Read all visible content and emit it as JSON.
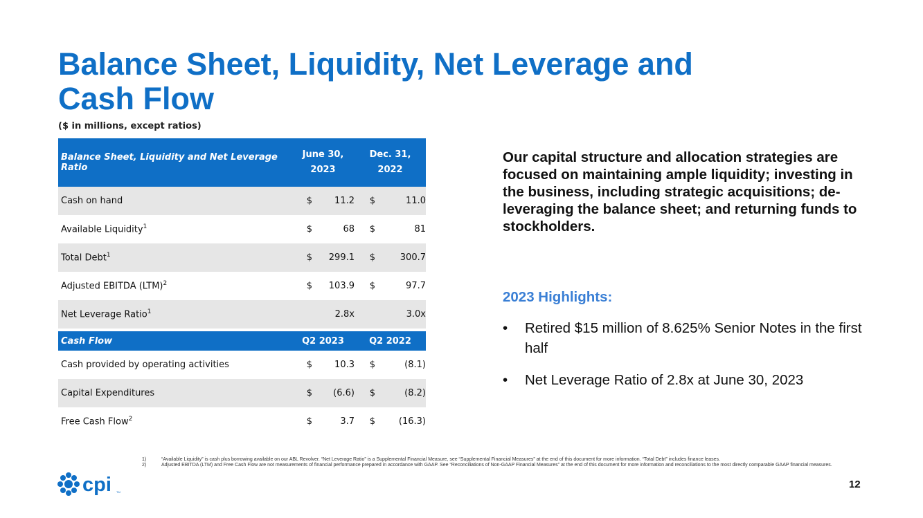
{
  "title": "Balance Sheet, Liquidity, Net Leverage and Cash Flow",
  "subtitle": "($ in millions, except ratios)",
  "table": {
    "header": {
      "label": "Balance Sheet, Liquidity and Net Leverage Ratio",
      "col1": "June 30,\n2023",
      "col2": "Dec. 31,\n2022"
    },
    "rows": [
      {
        "label": "Cash on hand",
        "sup": "",
        "cur1": "$",
        "v1": "11.2",
        "cur2": "$",
        "v2": "11.0"
      },
      {
        "label": "Available Liquidity",
        "sup": "1",
        "cur1": "$",
        "v1": "68",
        "cur2": "$",
        "v2": "81"
      },
      {
        "label": "Total Debt",
        "sup": "1",
        "cur1": "$",
        "v1": "299.1",
        "cur2": "$",
        "v2": "300.7"
      },
      {
        "label": "Adjusted EBITDA (LTM)",
        "sup": "2",
        "cur1": "$",
        "v1": "103.9",
        "cur2": "$",
        "v2": "97.7"
      },
      {
        "label": "Net Leverage Ratio",
        "sup": "1",
        "cur1": "",
        "v1": "2.8x",
        "cur2": "",
        "v2": "3.0x"
      }
    ],
    "cash_flow_header": {
      "label": "Cash Flow",
      "col1": "Q2 2023",
      "col2": "Q2 2022"
    },
    "cash_flow_rows": [
      {
        "label": "Cash provided by operating activities",
        "sup": "",
        "cur1": "$",
        "v1": "10.3",
        "cur2": "$",
        "v2": "(8.1)"
      },
      {
        "label": "Capital Expenditures",
        "sup": "",
        "cur1": "$",
        "v1": "(6.6)",
        "cur2": "$",
        "v2": "(8.2)"
      },
      {
        "label": "Free Cash Flow",
        "sup": "2",
        "cur1": "$",
        "v1": "3.7",
        "cur2": "$",
        "v2": "(16.3)"
      }
    ]
  },
  "intro": "Our capital structure and allocation strategies are focused on maintaining ample liquidity; investing in the business, including strategic acquisitions; de-leveraging the balance sheet; and returning funds to stockholders.",
  "highlights": {
    "title": "2023 Highlights:",
    "bullet": "•",
    "items": [
      "Retired $15 million of 8.625% Senior Notes in the first half",
      "Net Leverage Ratio of 2.8x at June 30, 2023"
    ]
  },
  "footnotes": [
    {
      "num": "1)",
      "text": "“Available Liquidity” is cash plus borrowing available on our ABL Revolver. “Net Leverage Ratio” is a Supplemental Financial Measure, see “Supplemental Financial Measures” at the end of this document for more information.  “Total Debt” includes finance leases."
    },
    {
      "num": "2)",
      "text": "Adjusted EBITDA (LTM) and Free Cash Flow are not measurements of financial performance prepared in accordance with GAAP. See “Reconciliations of Non-GAAP Financial Measures” at the end of this document for more information and reconciliations to the most directly comparable GAAP financial measures."
    }
  ],
  "logo": {
    "text": "cpi",
    "tm": "TM",
    "color": "#0f6fc6"
  },
  "page_number": "12",
  "colors": {
    "accent": "#0f6fc6",
    "highlight_title": "#3a7fd5",
    "row_shade": "#e6e6e6"
  }
}
